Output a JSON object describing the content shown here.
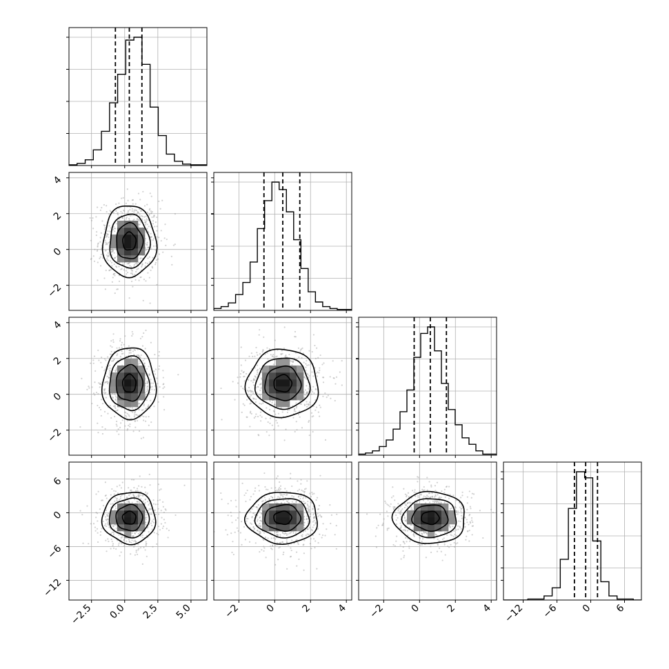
{
  "chart_data": {
    "type": "corner",
    "parameters": [
      "",
      "",
      "",
      ""
    ],
    "ranges": [
      [
        -4.2,
        6.2
      ],
      [
        -3.4,
        4.3
      ],
      [
        -3.4,
        4.3
      ],
      [
        -15.5,
        9.0
      ]
    ],
    "ticks": [
      {
        "values": [
          -2.5,
          0.0,
          2.5,
          5.0
        ],
        "labels": [
          "−2.5",
          "0.0",
          "2.5",
          "5.0"
        ]
      },
      {
        "values": [
          -2,
          0,
          2,
          4
        ],
        "labels": [
          "−2",
          "0",
          "2",
          "4"
        ]
      },
      {
        "values": [
          -2,
          0,
          2,
          4
        ],
        "labels": [
          "−2",
          "0",
          "2",
          "4"
        ]
      },
      {
        "values": [
          -12,
          -6,
          0,
          6
        ],
        "labels": [
          "−12",
          "−6",
          "0",
          "6"
        ]
      }
    ],
    "quantiles": [
      [
        -0.7,
        0.35,
        1.3
      ],
      [
        -0.6,
        0.45,
        1.4
      ],
      [
        -0.3,
        0.6,
        1.5
      ],
      [
        -2.9,
        -0.9,
        1.2
      ]
    ],
    "histograms": [
      {
        "counts": [
          1,
          3,
          8,
          22,
          48,
          88,
          128,
          176,
          180,
          142,
          82,
          42,
          16,
          6,
          2,
          1,
          1
        ]
      },
      {
        "counts": [
          2,
          4,
          8,
          17,
          30,
          52,
          88,
          118,
          138,
          130,
          106,
          76,
          45,
          20,
          9,
          4,
          2,
          1,
          1
        ]
      },
      {
        "counts": [
          1,
          2,
          4,
          8,
          14,
          24,
          40,
          60,
          90,
          112,
          118,
          96,
          66,
          42,
          28,
          16,
          10,
          4,
          1,
          1
        ]
      },
      {
        "counts": [
          0,
          0,
          0,
          1,
          1,
          4,
          12,
          40,
          90,
          126,
          120,
          58,
          18,
          4,
          1,
          1,
          0
        ]
      }
    ],
    "panels": [
      {
        "row": 1,
        "col": 0,
        "cx": 0.35,
        "cy": 0.45,
        "sx": 1.0,
        "sy": 1.0,
        "rho": 0.0
      },
      {
        "row": 2,
        "col": 0,
        "cx": 0.35,
        "cy": 0.6,
        "sx": 1.0,
        "sy": 1.0,
        "rho": 0.0
      },
      {
        "row": 2,
        "col": 1,
        "cx": 0.45,
        "cy": 0.6,
        "sx": 1.0,
        "sy": 0.95,
        "rho": 0.0
      },
      {
        "row": 3,
        "col": 0,
        "cx": 0.35,
        "cy": -0.9,
        "sx": 1.0,
        "sy": 2.3,
        "rho": 0.0
      },
      {
        "row": 3,
        "col": 1,
        "cx": 0.45,
        "cy": -0.9,
        "sx": 1.0,
        "sy": 2.3,
        "rho": 0.0
      },
      {
        "row": 3,
        "col": 2,
        "cx": 0.6,
        "cy": -0.9,
        "sx": 1.0,
        "sy": 2.3,
        "rho": 0.0
      }
    ],
    "contour_levels": [
      0.5,
      1.0,
      1.5,
      2.0
    ],
    "grid": true,
    "title": "",
    "xlabel": "",
    "ylabel": ""
  }
}
